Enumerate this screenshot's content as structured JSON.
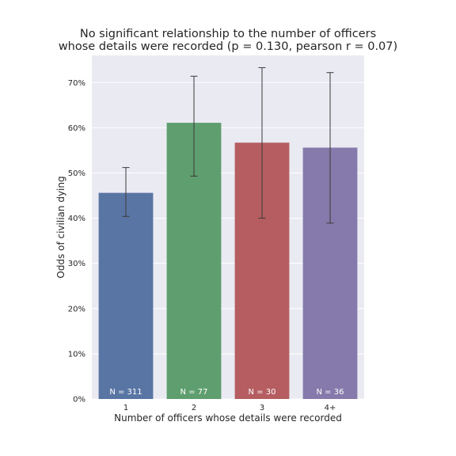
{
  "chart_data": {
    "type": "bar",
    "title_lines": [
      "No significant relationship to the number of officers",
      "whose details were recorded (p = 0.130, pearson r = 0.07)"
    ],
    "xlabel": "Number of officers whose details were recorded",
    "ylabel": "Odds of civilian dying",
    "categories": [
      "1",
      "2",
      "3",
      "4+"
    ],
    "values": [
      0.456,
      0.611,
      0.567,
      0.556
    ],
    "error_low": [
      0.404,
      0.493,
      0.4,
      0.389
    ],
    "error_high": [
      0.512,
      0.714,
      0.733,
      0.722
    ],
    "bar_labels": [
      "N = 311",
      "N = 77",
      "N = 30",
      "N = 36"
    ],
    "colors": [
      "#5975a4",
      "#5f9e6e",
      "#b55d60",
      "#857aab"
    ],
    "ylim": [
      0,
      0.76
    ],
    "yticks": [
      0,
      0.1,
      0.2,
      0.3,
      0.4,
      0.5,
      0.6,
      0.7
    ],
    "ytick_labels": [
      "0%",
      "10%",
      "20%",
      "30%",
      "40%",
      "50%",
      "60%",
      "70%"
    ],
    "grid": true,
    "background": "#eaeaf2"
  }
}
